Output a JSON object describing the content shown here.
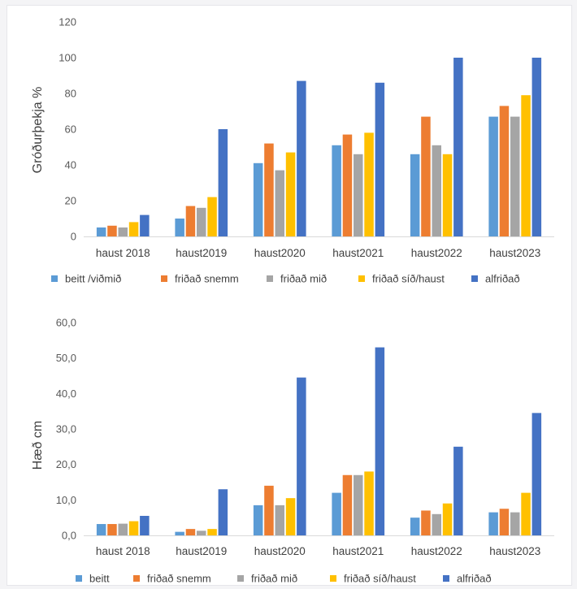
{
  "chart_data": [
    {
      "type": "bar",
      "ylabel": "Gróðurþekja %",
      "ylim": [
        0,
        120
      ],
      "yticks": [
        "0",
        "20",
        "40",
        "60",
        "80",
        "100",
        "120"
      ],
      "categories": [
        "haust 2018",
        "haust2019",
        "haust2020",
        "haust2021",
        "haust2022",
        "haust2023"
      ],
      "series": [
        {
          "name": "beitt /viðmið",
          "color": "#5b9bd5",
          "values": [
            5,
            10,
            41,
            51,
            46,
            67
          ]
        },
        {
          "name": "friðað snemm",
          "color": "#ed7d31",
          "values": [
            6,
            17,
            52,
            57,
            67,
            73
          ]
        },
        {
          "name": "friðað mið",
          "color": "#a5a5a5",
          "values": [
            5,
            16,
            37,
            46,
            51,
            67
          ]
        },
        {
          "name": "friðað síð/haust",
          "color": "#ffc000",
          "values": [
            8,
            22,
            47,
            58,
            46,
            79
          ]
        },
        {
          "name": "alfriðað",
          "color": "#4472c4",
          "values": [
            12,
            60,
            87,
            86,
            100,
            100
          ]
        }
      ],
      "grid": false,
      "legend": "bottom"
    },
    {
      "type": "bar",
      "ylabel": "Hæð cm",
      "ylim": [
        0,
        60
      ],
      "yticks": [
        "0,0",
        "10,0",
        "20,0",
        "30,0",
        "40,0",
        "50,0",
        "60,0"
      ],
      "categories": [
        "haust 2018",
        "haust2019",
        "haust2020",
        "haust2021",
        "haust2022",
        "haust2023"
      ],
      "series": [
        {
          "name": "beitt",
          "color": "#5b9bd5",
          "values": [
            3.2,
            1.0,
            8.5,
            12.0,
            5.0,
            6.5
          ]
        },
        {
          "name": "friðað snemm",
          "color": "#ed7d31",
          "values": [
            3.2,
            1.8,
            14.0,
            17.0,
            7.0,
            7.5
          ]
        },
        {
          "name": "friðað mið",
          "color": "#a5a5a5",
          "values": [
            3.3,
            1.3,
            8.5,
            17.0,
            6.0,
            6.5
          ]
        },
        {
          "name": "friðað síð/haust",
          "color": "#ffc000",
          "values": [
            4.0,
            1.8,
            10.5,
            18.0,
            9.0,
            12.0
          ]
        },
        {
          "name": "alfriðað",
          "color": "#4472c4",
          "values": [
            5.5,
            13.0,
            44.5,
            53.0,
            25.0,
            34.5
          ]
        }
      ],
      "grid": false,
      "legend": "bottom"
    }
  ]
}
